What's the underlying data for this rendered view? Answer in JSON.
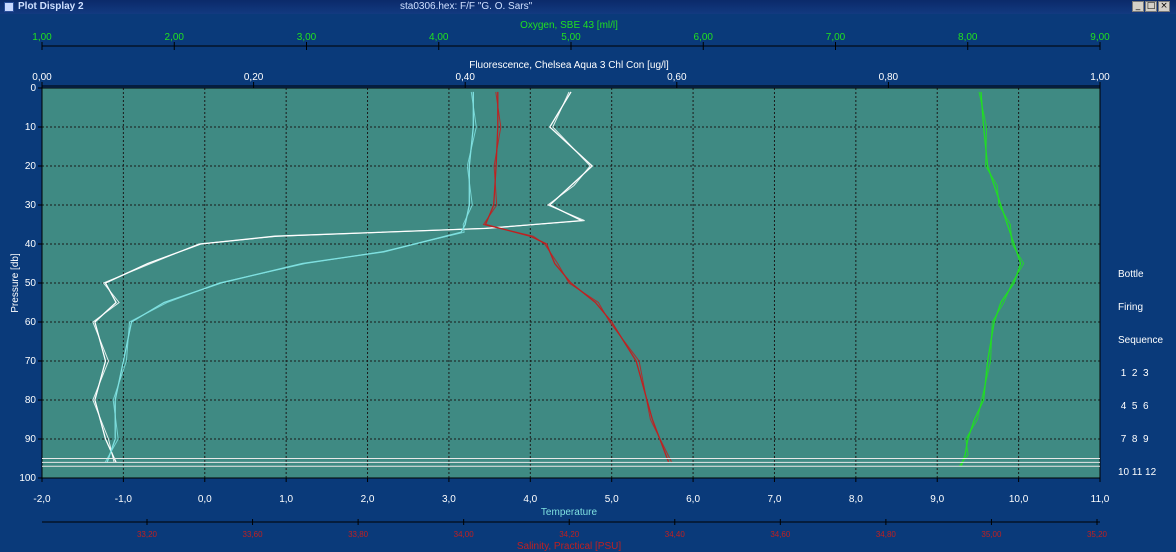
{
  "window": {
    "title": "Plot Display 2",
    "file_title": "sta0306.hex: F/F \"G. O. Sars\"",
    "buttons": {
      "minimize": "_",
      "maximize": "□",
      "close": "×"
    }
  },
  "legend": {
    "lines": [
      "Bottle",
      "Firing",
      "Sequence",
      " 1  2  3",
      " 4  5  6",
      " 7  8  9",
      "10 11 12"
    ]
  },
  "colors": {
    "background": "#0a3a7a",
    "plot_bg": "#3f8a83",
    "oxygen": "#20e020",
    "fluorescence": "#ffffff",
    "temperature": "#7fe0e0",
    "salinity": "#c02020",
    "grid": "#1a1a1a"
  },
  "chart_data": {
    "type": "line",
    "axes": {
      "oxygen": {
        "label": "Oxygen, SBE 43 [ml/l]",
        "ticks": [
          "1,00",
          "2,00",
          "3,00",
          "4,00",
          "5,00",
          "6,00",
          "7,00",
          "8,00",
          "9,00"
        ],
        "range": [
          1,
          9
        ]
      },
      "fluorescence": {
        "label": "Fluorescence, Chelsea Aqua 3 Chl Con [ug/l]",
        "ticks": [
          "0,00",
          "0,20",
          "0,40",
          "0,60",
          "0,80",
          "1,00"
        ],
        "range": [
          0,
          1
        ]
      },
      "temperature": {
        "label": "Temperature",
        "ticks": [
          "-2,0",
          "-1,0",
          "0,0",
          "1,0",
          "2,0",
          "3,0",
          "4,0",
          "5,0",
          "6,0",
          "7,0",
          "8,0",
          "9,0",
          "10,0",
          "11,0"
        ],
        "range": [
          -2,
          11
        ]
      },
      "salinity": {
        "label": "Salinity, Practical [PSU]",
        "ticks": [
          "33,20",
          "33,60",
          "33,80",
          "34,00",
          "34,20",
          "34,40",
          "34,60",
          "34,80",
          "35,00",
          "35,20"
        ]
      },
      "pressure": {
        "label": "Pressure [db]",
        "ticks": [
          "0",
          "10",
          "20",
          "30",
          "40",
          "50",
          "60",
          "70",
          "80",
          "90",
          "100"
        ],
        "range": [
          0,
          100
        ]
      }
    },
    "series": [
      {
        "name": "Oxygen, SBE 43 [ml/l]",
        "color": "#20e020",
        "x": [
          8.1,
          8.12,
          8.15,
          8.2,
          8.25,
          8.3,
          8.35,
          8.4,
          8.35,
          8.25,
          8.2,
          8.15,
          8.12,
          8.05,
          8.0,
          7.98,
          7.95
        ],
        "y": [
          1,
          10,
          20,
          25,
          30,
          35,
          40,
          45,
          50,
          55,
          60,
          70,
          80,
          85,
          90,
          94,
          97
        ]
      },
      {
        "name": "Fluorescence, Chelsea Aqua 3 Chl Con [ug/l]",
        "color": "#ffffff",
        "x": [
          0.5,
          0.48,
          0.52,
          0.5,
          0.48,
          0.51,
          0.42,
          0.22,
          0.15,
          0.1,
          0.06,
          0.07,
          0.05,
          0.06,
          0.05,
          0.06,
          0.07
        ],
        "y": [
          1,
          10,
          20,
          25,
          30,
          34,
          36,
          38,
          40,
          45,
          50,
          55,
          60,
          70,
          80,
          90,
          96
        ]
      },
      {
        "name": "Temperature",
        "color": "#7fe0e0",
        "x": [
          3.3,
          3.3,
          3.25,
          3.25,
          3.2,
          3.15,
          2.2,
          1.2,
          0.2,
          -0.5,
          -0.9,
          -1.0,
          -1.1,
          -1.1,
          -1.2
        ],
        "y": [
          1,
          10,
          20,
          30,
          35,
          37,
          42,
          45,
          50,
          55,
          60,
          70,
          80,
          90,
          96
        ]
      },
      {
        "name": "Salinity, Practical [PSU]",
        "color": "#c02020",
        "x": [
          3.6,
          3.6,
          3.58,
          3.55,
          3.45,
          4.0,
          4.2,
          4.3,
          4.5,
          4.8,
          5.0,
          5.3,
          5.5,
          5.7
        ],
        "y": [
          1,
          10,
          20,
          30,
          35,
          38,
          40,
          45,
          50,
          55,
          60,
          70,
          85,
          96
        ]
      }
    ]
  }
}
